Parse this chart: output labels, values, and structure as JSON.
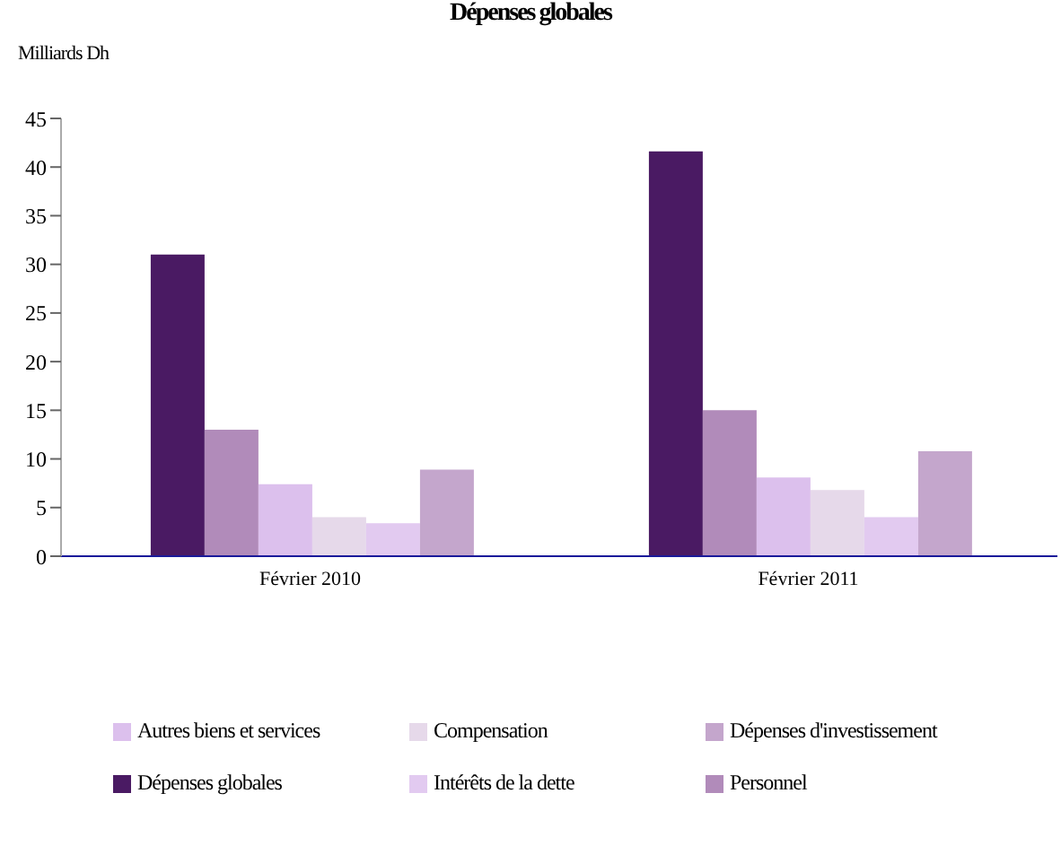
{
  "chart_data": {
    "type": "bar",
    "title": "Dépenses globales",
    "ylabel": "Milliards Dh",
    "categories": [
      "Février 2010",
      "Février 2011"
    ],
    "series": [
      {
        "name": "Dépenses globales",
        "color": "#4a1a63",
        "values": [
          31,
          41.6
        ]
      },
      {
        "name": "Personnel",
        "color": "#b18bba",
        "values": [
          13,
          15
        ]
      },
      {
        "name": "Autres biens et services",
        "color": "#dcc0ed",
        "values": [
          7.4,
          8.1
        ]
      },
      {
        "name": "Compensation",
        "color": "#e6d9ea",
        "values": [
          4,
          6.8
        ]
      },
      {
        "name": "Intérêts de la dette",
        "color": "#e2caf0",
        "values": [
          3.4,
          4
        ]
      },
      {
        "name": "Dépenses d'investissement",
        "color": "#c4a6cc",
        "values": [
          8.9,
          10.8
        ]
      }
    ],
    "ylim": [
      0,
      45
    ],
    "yticks": [
      0,
      5,
      10,
      15,
      20,
      25,
      30,
      35,
      40,
      45
    ],
    "grid": false,
    "legend": "bottom"
  }
}
